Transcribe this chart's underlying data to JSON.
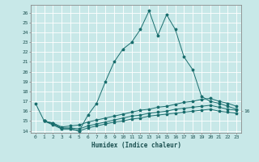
{
  "xlabel": "Humidex (Indice chaleur)",
  "background_color": "#c8e8e8",
  "grid_color": "#b0d8d8",
  "line_color": "#1a6e6e",
  "xlim": [
    -0.5,
    23.5
  ],
  "ylim": [
    13.8,
    26.8
  ],
  "yticks": [
    14,
    15,
    16,
    17,
    18,
    19,
    20,
    21,
    22,
    23,
    24,
    25,
    26
  ],
  "xticks": [
    0,
    1,
    2,
    3,
    4,
    5,
    6,
    7,
    8,
    9,
    10,
    11,
    12,
    13,
    14,
    15,
    16,
    17,
    18,
    19,
    20,
    21,
    22,
    23
  ],
  "series": [
    {
      "x": [
        0,
        1,
        2,
        3,
        4,
        5,
        6,
        7,
        8,
        9,
        10,
        11,
        12,
        13,
        14,
        15,
        16,
        17,
        18,
        19,
        20,
        21,
        22,
        23
      ],
      "y": [
        16.8,
        15.0,
        14.8,
        14.2,
        14.2,
        14.0,
        15.6,
        16.8,
        19.0,
        21.0,
        22.3,
        23.0,
        24.3,
        26.2,
        23.7,
        25.8,
        24.3,
        21.5,
        20.2,
        17.5,
        17.0,
        16.8,
        16.5,
        16.2
      ]
    },
    {
      "x": [
        1,
        2,
        3,
        4,
        5,
        6,
        7,
        8,
        9,
        10,
        11,
        12,
        13,
        14,
        15,
        16,
        17,
        18,
        19,
        20,
        21,
        22,
        23
      ],
      "y": [
        15.0,
        14.8,
        14.4,
        14.5,
        14.6,
        14.9,
        15.1,
        15.3,
        15.5,
        15.7,
        15.9,
        16.1,
        16.2,
        16.4,
        16.5,
        16.7,
        16.9,
        17.0,
        17.2,
        17.3,
        17.0,
        16.8,
        16.5
      ]
    },
    {
      "x": [
        1,
        2,
        3,
        4,
        5,
        6,
        7,
        8,
        9,
        10,
        11,
        12,
        13,
        14,
        15,
        16,
        17,
        18,
        19,
        20,
        21,
        22,
        23
      ],
      "y": [
        15.0,
        14.7,
        14.3,
        14.3,
        14.2,
        14.5,
        14.7,
        14.9,
        15.1,
        15.3,
        15.5,
        15.6,
        15.8,
        15.9,
        16.0,
        16.2,
        16.3,
        16.4,
        16.5,
        16.6,
        16.4,
        16.2,
        16.1
      ]
    },
    {
      "x": [
        1,
        2,
        3,
        4,
        5,
        6,
        7,
        8,
        9,
        10,
        11,
        12,
        13,
        14,
        15,
        16,
        17,
        18,
        19,
        20,
        21,
        22,
        23
      ],
      "y": [
        15.0,
        14.6,
        14.2,
        14.2,
        14.0,
        14.3,
        14.5,
        14.7,
        14.9,
        15.0,
        15.2,
        15.3,
        15.5,
        15.6,
        15.7,
        15.8,
        15.9,
        16.0,
        16.1,
        16.2,
        16.0,
        15.9,
        15.8
      ]
    }
  ]
}
